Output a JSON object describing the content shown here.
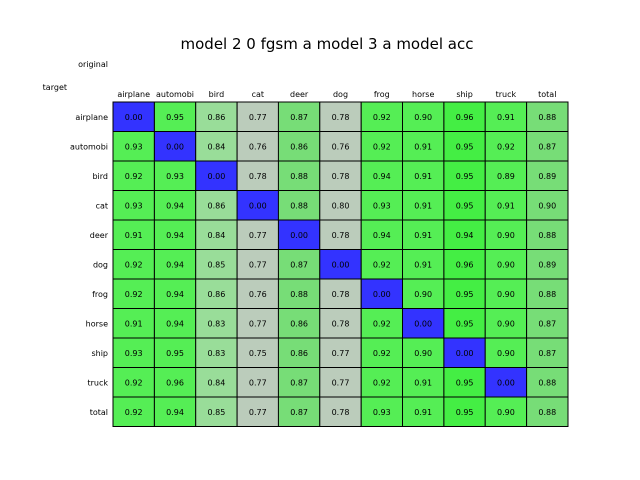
{
  "chart_data": {
    "type": "table",
    "title": "model 2 0 fgsm a model 3 a model acc",
    "row_header_label": "original",
    "col_header_label": "target",
    "columns": [
      "airplane",
      "automobi",
      "bird",
      "cat",
      "deer",
      "dog",
      "frog",
      "horse",
      "ship",
      "truck",
      "total"
    ],
    "rows": [
      "airplane",
      "automobi",
      "bird",
      "cat",
      "deer",
      "dog",
      "frog",
      "horse",
      "ship",
      "truck",
      "total"
    ],
    "values": [
      [
        0.0,
        0.95,
        0.86,
        0.77,
        0.87,
        0.78,
        0.92,
        0.9,
        0.96,
        0.91,
        0.88
      ],
      [
        0.93,
        0.0,
        0.84,
        0.76,
        0.86,
        0.76,
        0.92,
        0.91,
        0.95,
        0.92,
        0.87
      ],
      [
        0.92,
        0.93,
        0.0,
        0.78,
        0.88,
        0.78,
        0.94,
        0.91,
        0.95,
        0.89,
        0.89
      ],
      [
        0.93,
        0.94,
        0.86,
        0.0,
        0.88,
        0.8,
        0.93,
        0.91,
        0.95,
        0.91,
        0.9
      ],
      [
        0.91,
        0.94,
        0.84,
        0.77,
        0.0,
        0.78,
        0.94,
        0.91,
        0.94,
        0.9,
        0.88
      ],
      [
        0.92,
        0.94,
        0.85,
        0.77,
        0.87,
        0.0,
        0.92,
        0.91,
        0.96,
        0.9,
        0.89
      ],
      [
        0.92,
        0.94,
        0.86,
        0.76,
        0.88,
        0.78,
        0.0,
        0.9,
        0.95,
        0.9,
        0.88
      ],
      [
        0.91,
        0.94,
        0.83,
        0.77,
        0.86,
        0.78,
        0.92,
        0.0,
        0.95,
        0.9,
        0.87
      ],
      [
        0.93,
        0.95,
        0.83,
        0.75,
        0.86,
        0.77,
        0.92,
        0.9,
        0.0,
        0.9,
        0.87
      ],
      [
        0.92,
        0.96,
        0.84,
        0.77,
        0.87,
        0.77,
        0.92,
        0.91,
        0.95,
        0.0,
        0.88
      ],
      [
        0.92,
        0.94,
        0.85,
        0.77,
        0.87,
        0.78,
        0.93,
        0.91,
        0.95,
        0.9,
        0.88
      ]
    ],
    "column_colors": [
      "#55ee55",
      "#55ee55",
      "#99dd99",
      "#bbccbb",
      "#77dd77",
      "#bbccbb",
      "#55ee55",
      "#55ee55",
      "#44ee44",
      "#55ee55",
      "#77dd77"
    ],
    "diagonal_color": "#3333ff",
    "grid_line_color": "#000000"
  }
}
